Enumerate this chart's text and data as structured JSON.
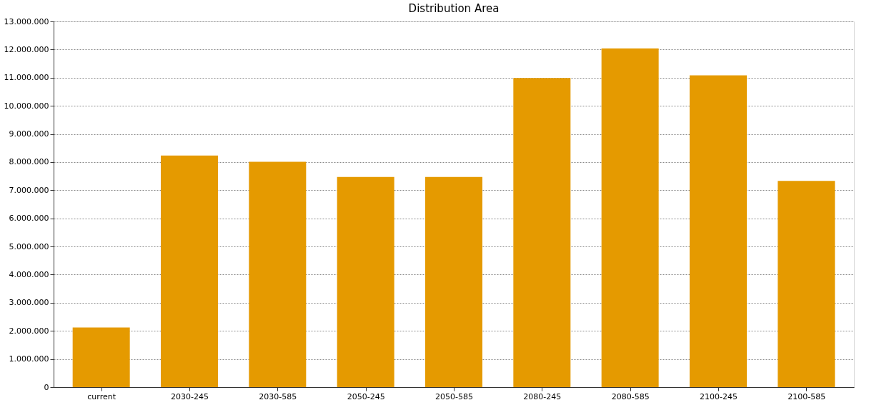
{
  "chart_data": {
    "type": "bar",
    "title": "Distribution Area",
    "categories": [
      "current",
      "2030-245",
      "2030-585",
      "2050-245",
      "2050-585",
      "2080-245",
      "2080-585",
      "2100-245",
      "2100-585"
    ],
    "values": [
      2120000,
      8230000,
      8010000,
      7470000,
      7470000,
      10990000,
      12040000,
      11080000,
      7330000
    ],
    "color": "#e59a00",
    "ylim": [
      0,
      13000000
    ],
    "yticks": [
      {
        "value": 0,
        "label": "0"
      },
      {
        "value": 1000000,
        "label": "1.000.000"
      },
      {
        "value": 2000000,
        "label": "2.000.000"
      },
      {
        "value": 3000000,
        "label": "3.000.000"
      },
      {
        "value": 4000000,
        "label": "4.000.000"
      },
      {
        "value": 5000000,
        "label": "5.000.000"
      },
      {
        "value": 6000000,
        "label": "6.000.000"
      },
      {
        "value": 7000000,
        "label": "7.000.000"
      },
      {
        "value": 8000000,
        "label": "8.000.000"
      },
      {
        "value": 9000000,
        "label": "9.000.000"
      },
      {
        "value": 10000000,
        "label": "10.000.000"
      },
      {
        "value": 11000000,
        "label": "11.000.000"
      },
      {
        "value": 12000000,
        "label": "12.000.000"
      },
      {
        "value": 13000000,
        "label": "13.000.000"
      }
    ],
    "grid": "y"
  }
}
